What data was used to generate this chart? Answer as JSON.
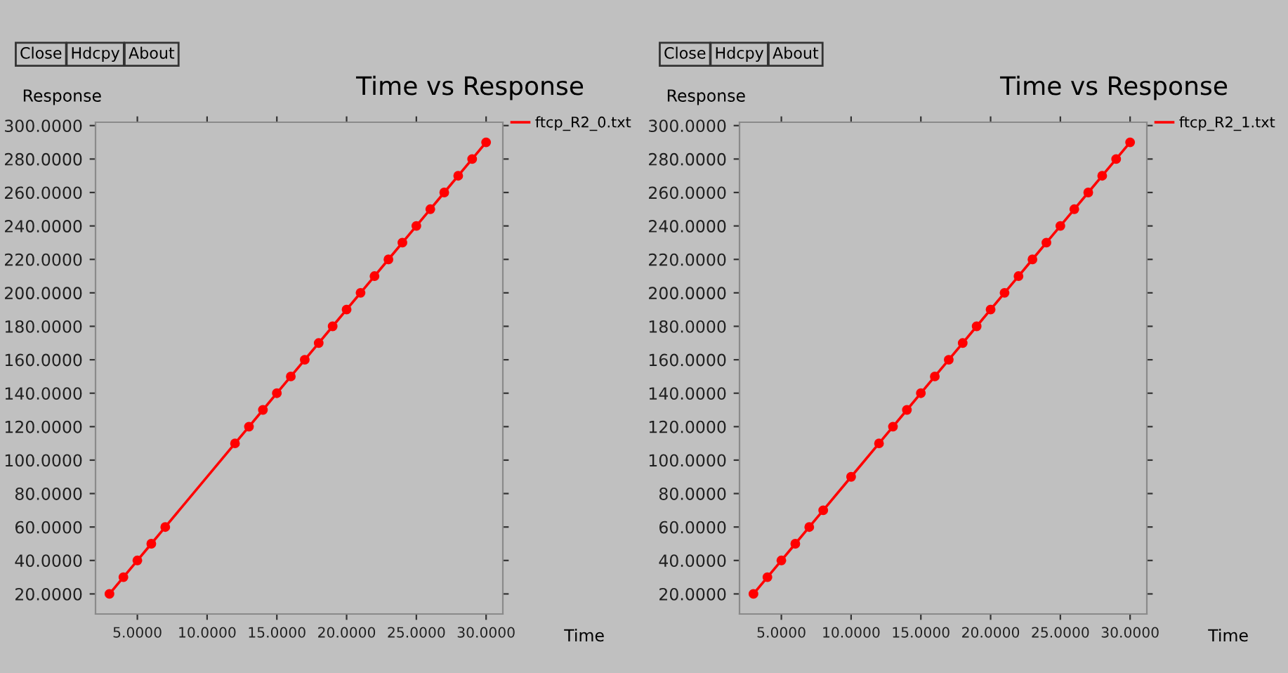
{
  "chart_data": [
    {
      "type": "line",
      "title": "Time vs Response",
      "xlabel": "Time",
      "ylabel": "Response",
      "annotations": [
        "Close",
        "Hdcpy",
        "About"
      ],
      "series": [
        {
          "name": "ftcp_R2_0.txt",
          "color": "#ff0000",
          "x": [
            3,
            4,
            5,
            6,
            7,
            12,
            13,
            14,
            15,
            16,
            17,
            18,
            19,
            20,
            21,
            22,
            23,
            24,
            25,
            26,
            27,
            28,
            29,
            30
          ],
          "values": [
            20,
            30,
            40,
            50,
            60,
            110,
            120,
            130,
            140,
            150,
            160,
            170,
            180,
            190,
            200,
            210,
            220,
            230,
            240,
            250,
            260,
            270,
            280,
            290
          ]
        }
      ],
      "xlim": [
        2,
        31.2
      ],
      "ylim": [
        8,
        302
      ],
      "xticks": [
        {
          "value": 5,
          "label": "5.0000"
        },
        {
          "value": 10,
          "label": "10.0000"
        },
        {
          "value": 15,
          "label": "15.0000"
        },
        {
          "value": 20,
          "label": "20.0000"
        },
        {
          "value": 25,
          "label": "25.0000"
        },
        {
          "value": 30,
          "label": "30.0000"
        }
      ],
      "yticks": [
        {
          "value": 20,
          "label": "20.0000"
        },
        {
          "value": 40,
          "label": "40.0000"
        },
        {
          "value": 60,
          "label": "60.0000"
        },
        {
          "value": 80,
          "label": "80.0000"
        },
        {
          "value": 100,
          "label": "100.0000"
        },
        {
          "value": 120,
          "label": "120.0000"
        },
        {
          "value": 140,
          "label": "140.0000"
        },
        {
          "value": 160,
          "label": "160.0000"
        },
        {
          "value": 180,
          "label": "180.0000"
        },
        {
          "value": 200,
          "label": "200.0000"
        },
        {
          "value": 220,
          "label": "220.0000"
        },
        {
          "value": 240,
          "label": "240.0000"
        },
        {
          "value": 260,
          "label": "260.0000"
        },
        {
          "value": 280,
          "label": "280.0000"
        },
        {
          "value": 300,
          "label": "300.0000"
        }
      ],
      "marker": "circle",
      "line_style": "solid",
      "legend": "top right",
      "grid": false
    },
    {
      "type": "line",
      "title": "Time vs Response",
      "xlabel": "Time",
      "ylabel": "Response",
      "annotations": [
        "Close",
        "Hdcpy",
        "About"
      ],
      "series": [
        {
          "name": "ftcp_R2_1.txt",
          "color": "#ff0000",
          "x": [
            3,
            4,
            5,
            6,
            7,
            8,
            10,
            12,
            13,
            14,
            15,
            16,
            17,
            18,
            19,
            20,
            21,
            22,
            23,
            24,
            25,
            26,
            27,
            28,
            29,
            30
          ],
          "values": [
            20,
            30,
            40,
            50,
            60,
            70,
            90,
            110,
            120,
            130,
            140,
            150,
            160,
            170,
            180,
            190,
            200,
            210,
            220,
            230,
            240,
            250,
            260,
            270,
            280,
            290
          ]
        }
      ],
      "xlim": [
        2,
        31.2
      ],
      "ylim": [
        8,
        302
      ],
      "xticks": [
        {
          "value": 5,
          "label": "5.0000"
        },
        {
          "value": 10,
          "label": "10.0000"
        },
        {
          "value": 15,
          "label": "15.0000"
        },
        {
          "value": 20,
          "label": "20.0000"
        },
        {
          "value": 25,
          "label": "25.0000"
        },
        {
          "value": 30,
          "label": "30.0000"
        }
      ],
      "yticks": [
        {
          "value": 20,
          "label": "20.0000"
        },
        {
          "value": 40,
          "label": "40.0000"
        },
        {
          "value": 60,
          "label": "60.0000"
        },
        {
          "value": 80,
          "label": "80.0000"
        },
        {
          "value": 100,
          "label": "100.0000"
        },
        {
          "value": 120,
          "label": "120.0000"
        },
        {
          "value": 140,
          "label": "140.0000"
        },
        {
          "value": 160,
          "label": "160.0000"
        },
        {
          "value": 180,
          "label": "180.0000"
        },
        {
          "value": 200,
          "label": "200.0000"
        },
        {
          "value": 220,
          "label": "220.0000"
        },
        {
          "value": 240,
          "label": "240.0000"
        },
        {
          "value": 260,
          "label": "260.0000"
        },
        {
          "value": 280,
          "label": "280.0000"
        },
        {
          "value": 300,
          "label": "300.0000"
        }
      ],
      "marker": "circle",
      "line_style": "solid",
      "legend": "top right",
      "grid": false
    }
  ]
}
